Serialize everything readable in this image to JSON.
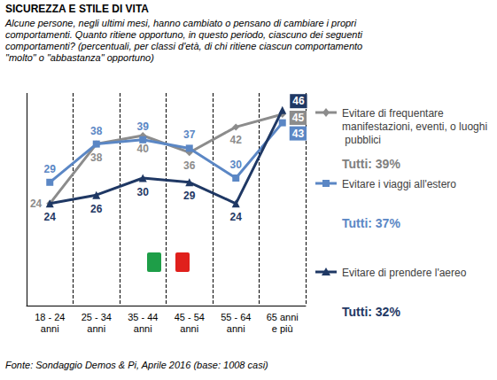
{
  "chart_data": {
    "type": "line",
    "title": "SICUREZZA E STILE DI VITA",
    "subtitle": "Alcune persone, negli ultimi mesi, hanno cambiato o pensano di cambiare i propri comportamenti. Quanto ritiene opportuno, in questo periodo, ciascuno dei seguenti comportamenti? (percentuali, per classi d'età, di chi ritiene ciascun comportamento \"molto\" o \"abbastanza\" opportuno)",
    "source": "Fonte: Sondaggio Demos & Pi, Aprile 2016 (base: 1008 casi)",
    "categories": [
      "18 - 24\nanni",
      "25 - 34\nanni",
      "35 - 44\nanni",
      "45 - 54\nanni",
      "55 - 64\nanni",
      "65 anni\ne più"
    ],
    "series": [
      {
        "name": "Evitare di frequentare manifestazioni, eventi, o luoghi pubblici",
        "color": "#8c8c8c",
        "marker": "diamond",
        "values": [
          24,
          38,
          40,
          36,
          42,
          45
        ]
      },
      {
        "name": "Evitare i viaggi all'estero",
        "color": "#5b87c5",
        "marker": "square",
        "values": [
          29,
          38,
          39,
          37,
          30,
          43
        ]
      },
      {
        "name": "Evitare di prendere l'aereo",
        "color": "#1f3864",
        "marker": "triangle",
        "values": [
          24,
          26,
          30,
          29,
          24,
          46
        ]
      }
    ],
    "annotations": [
      "Tutti: 39%",
      "Tutti: 37%",
      "Tutti: 32%"
    ],
    "ylim": [
      0,
      50
    ],
    "grid": true,
    "legend": "right",
    "data_labels": true,
    "tick_labels": "x"
  }
}
